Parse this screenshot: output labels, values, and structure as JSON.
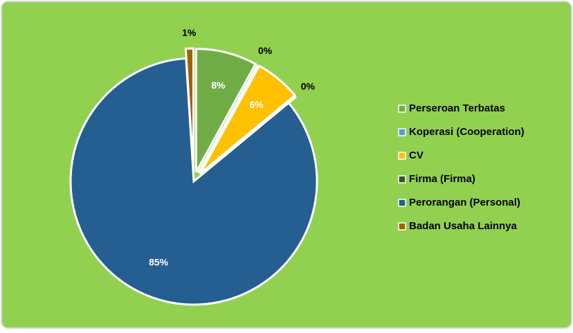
{
  "chart_data": {
    "type": "pie",
    "categories": [
      "Perseroan Terbatas",
      "Koperasi (Cooperation)",
      "CV",
      "Firma (Firma)",
      "Perorangan (Personal)",
      "Badan Usaha Lainnya"
    ],
    "values": [
      8,
      0,
      6,
      0,
      85,
      1
    ],
    "value_labels": [
      "8%",
      "0%",
      "6%",
      "0%",
      "85%",
      "1%"
    ],
    "colors": [
      "#70ad47",
      "#5b9bd5",
      "#ffc000",
      "#375623",
      "#255e91",
      "#9c6500"
    ],
    "legend": "right"
  }
}
